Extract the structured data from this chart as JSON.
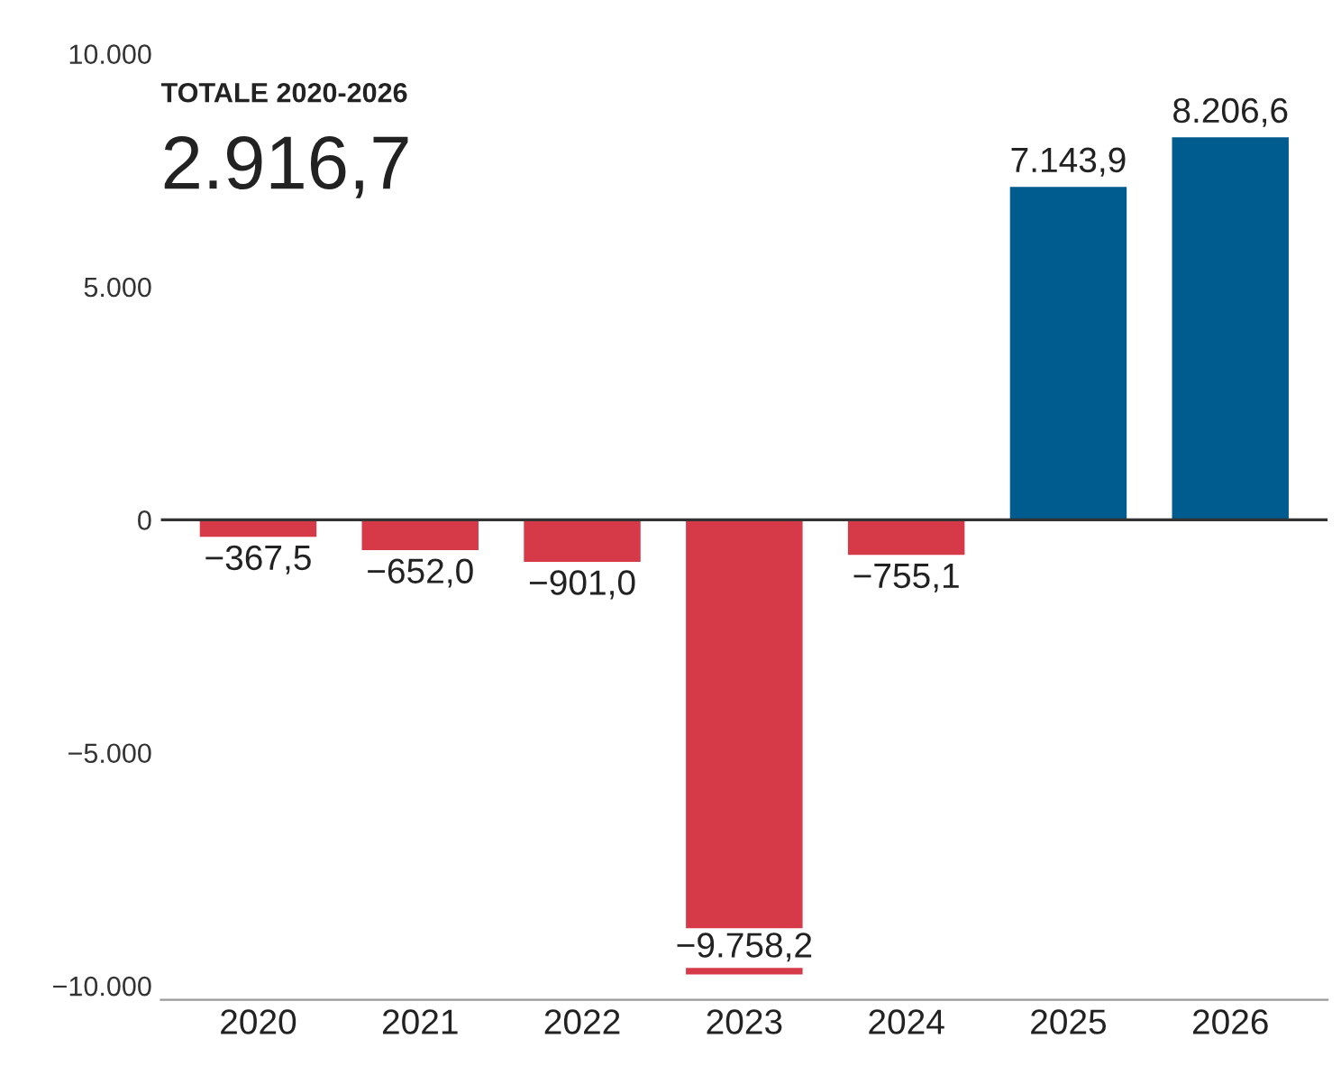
{
  "chart_data": {
    "type": "bar",
    "categories": [
      "2020",
      "2021",
      "2022",
      "2023",
      "2024",
      "2025",
      "2026"
    ],
    "values": [
      -367.5,
      -652.0,
      -901.0,
      -9758.2,
      -755.1,
      7143.9,
      8206.6
    ],
    "colors": [
      "#d63a48",
      "#d63a48",
      "#d63a48",
      "#d63a48",
      "#d63a48",
      "#005b8e",
      "#005b8e"
    ],
    "value_labels": [
      "−367,5",
      "−652,0",
      "−901,0",
      "−9.758,2",
      "−755,1",
      "7.143,9",
      "8.206,6"
    ],
    "ylim": [
      -10300,
      10000
    ],
    "yticks": [
      {
        "value": 10000,
        "label": "10.000"
      },
      {
        "value": 5000,
        "label": "5.000"
      },
      0,
      {
        "value": -5000,
        "label": "−5.000"
      },
      {
        "value": -10000,
        "label": "−10.000"
      }
    ],
    "ref_lines": [
      {
        "axis": "y",
        "value": 0,
        "color": "#333333"
      }
    ],
    "annotations": [
      "TOTALE 2020-2026",
      "2.916,7"
    ],
    "grid": false,
    "legend": false
  }
}
